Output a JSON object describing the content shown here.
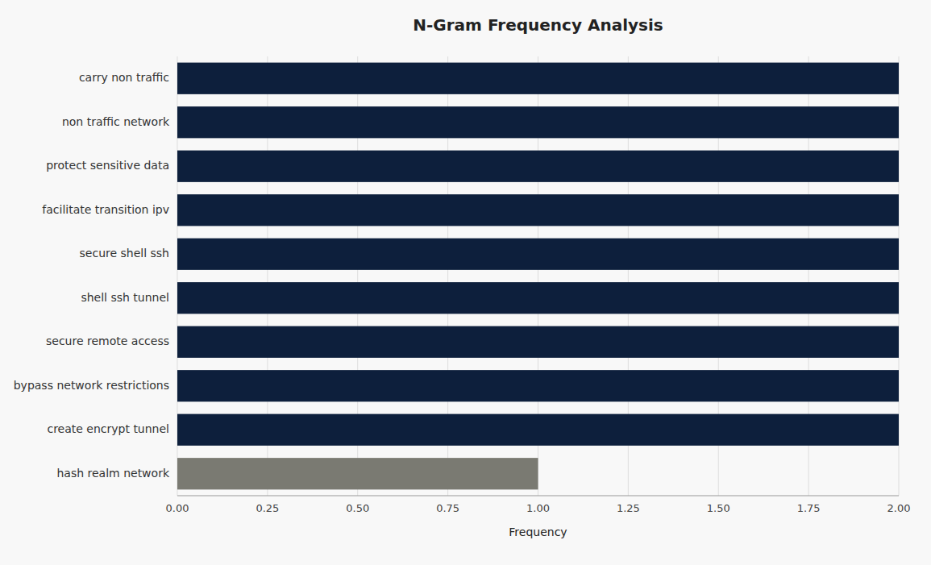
{
  "chart_data": {
    "type": "bar",
    "orientation": "horizontal",
    "title": "N-Gram Frequency Analysis",
    "categories": [
      "carry non traffic",
      "non traffic network",
      "protect sensitive data",
      "facilitate transition ipv",
      "secure shell ssh",
      "shell ssh tunnel",
      "secure remote access",
      "bypass network restrictions",
      "create encrypt tunnel",
      "hash realm network"
    ],
    "values": [
      2,
      2,
      2,
      2,
      2,
      2,
      2,
      2,
      2,
      1
    ],
    "colors": [
      "#0d1f3c",
      "#0d1f3c",
      "#0d1f3c",
      "#0d1f3c",
      "#0d1f3c",
      "#0d1f3c",
      "#0d1f3c",
      "#0d1f3c",
      "#0d1f3c",
      "#7a7a72"
    ],
    "xlabel": "Frequency",
    "xlim": [
      0,
      2.0
    ],
    "xticks": [
      {
        "value": 0.0,
        "label": "0.00"
      },
      {
        "value": 0.25,
        "label": "0.25"
      },
      {
        "value": 0.5,
        "label": "0.50"
      },
      {
        "value": 0.75,
        "label": "0.75"
      },
      {
        "value": 1.0,
        "label": "1.00"
      },
      {
        "value": 1.25,
        "label": "1.25"
      },
      {
        "value": 1.5,
        "label": "1.50"
      },
      {
        "value": 1.75,
        "label": "1.75"
      },
      {
        "value": 2.0,
        "label": "2.00"
      }
    ],
    "grid": true
  }
}
